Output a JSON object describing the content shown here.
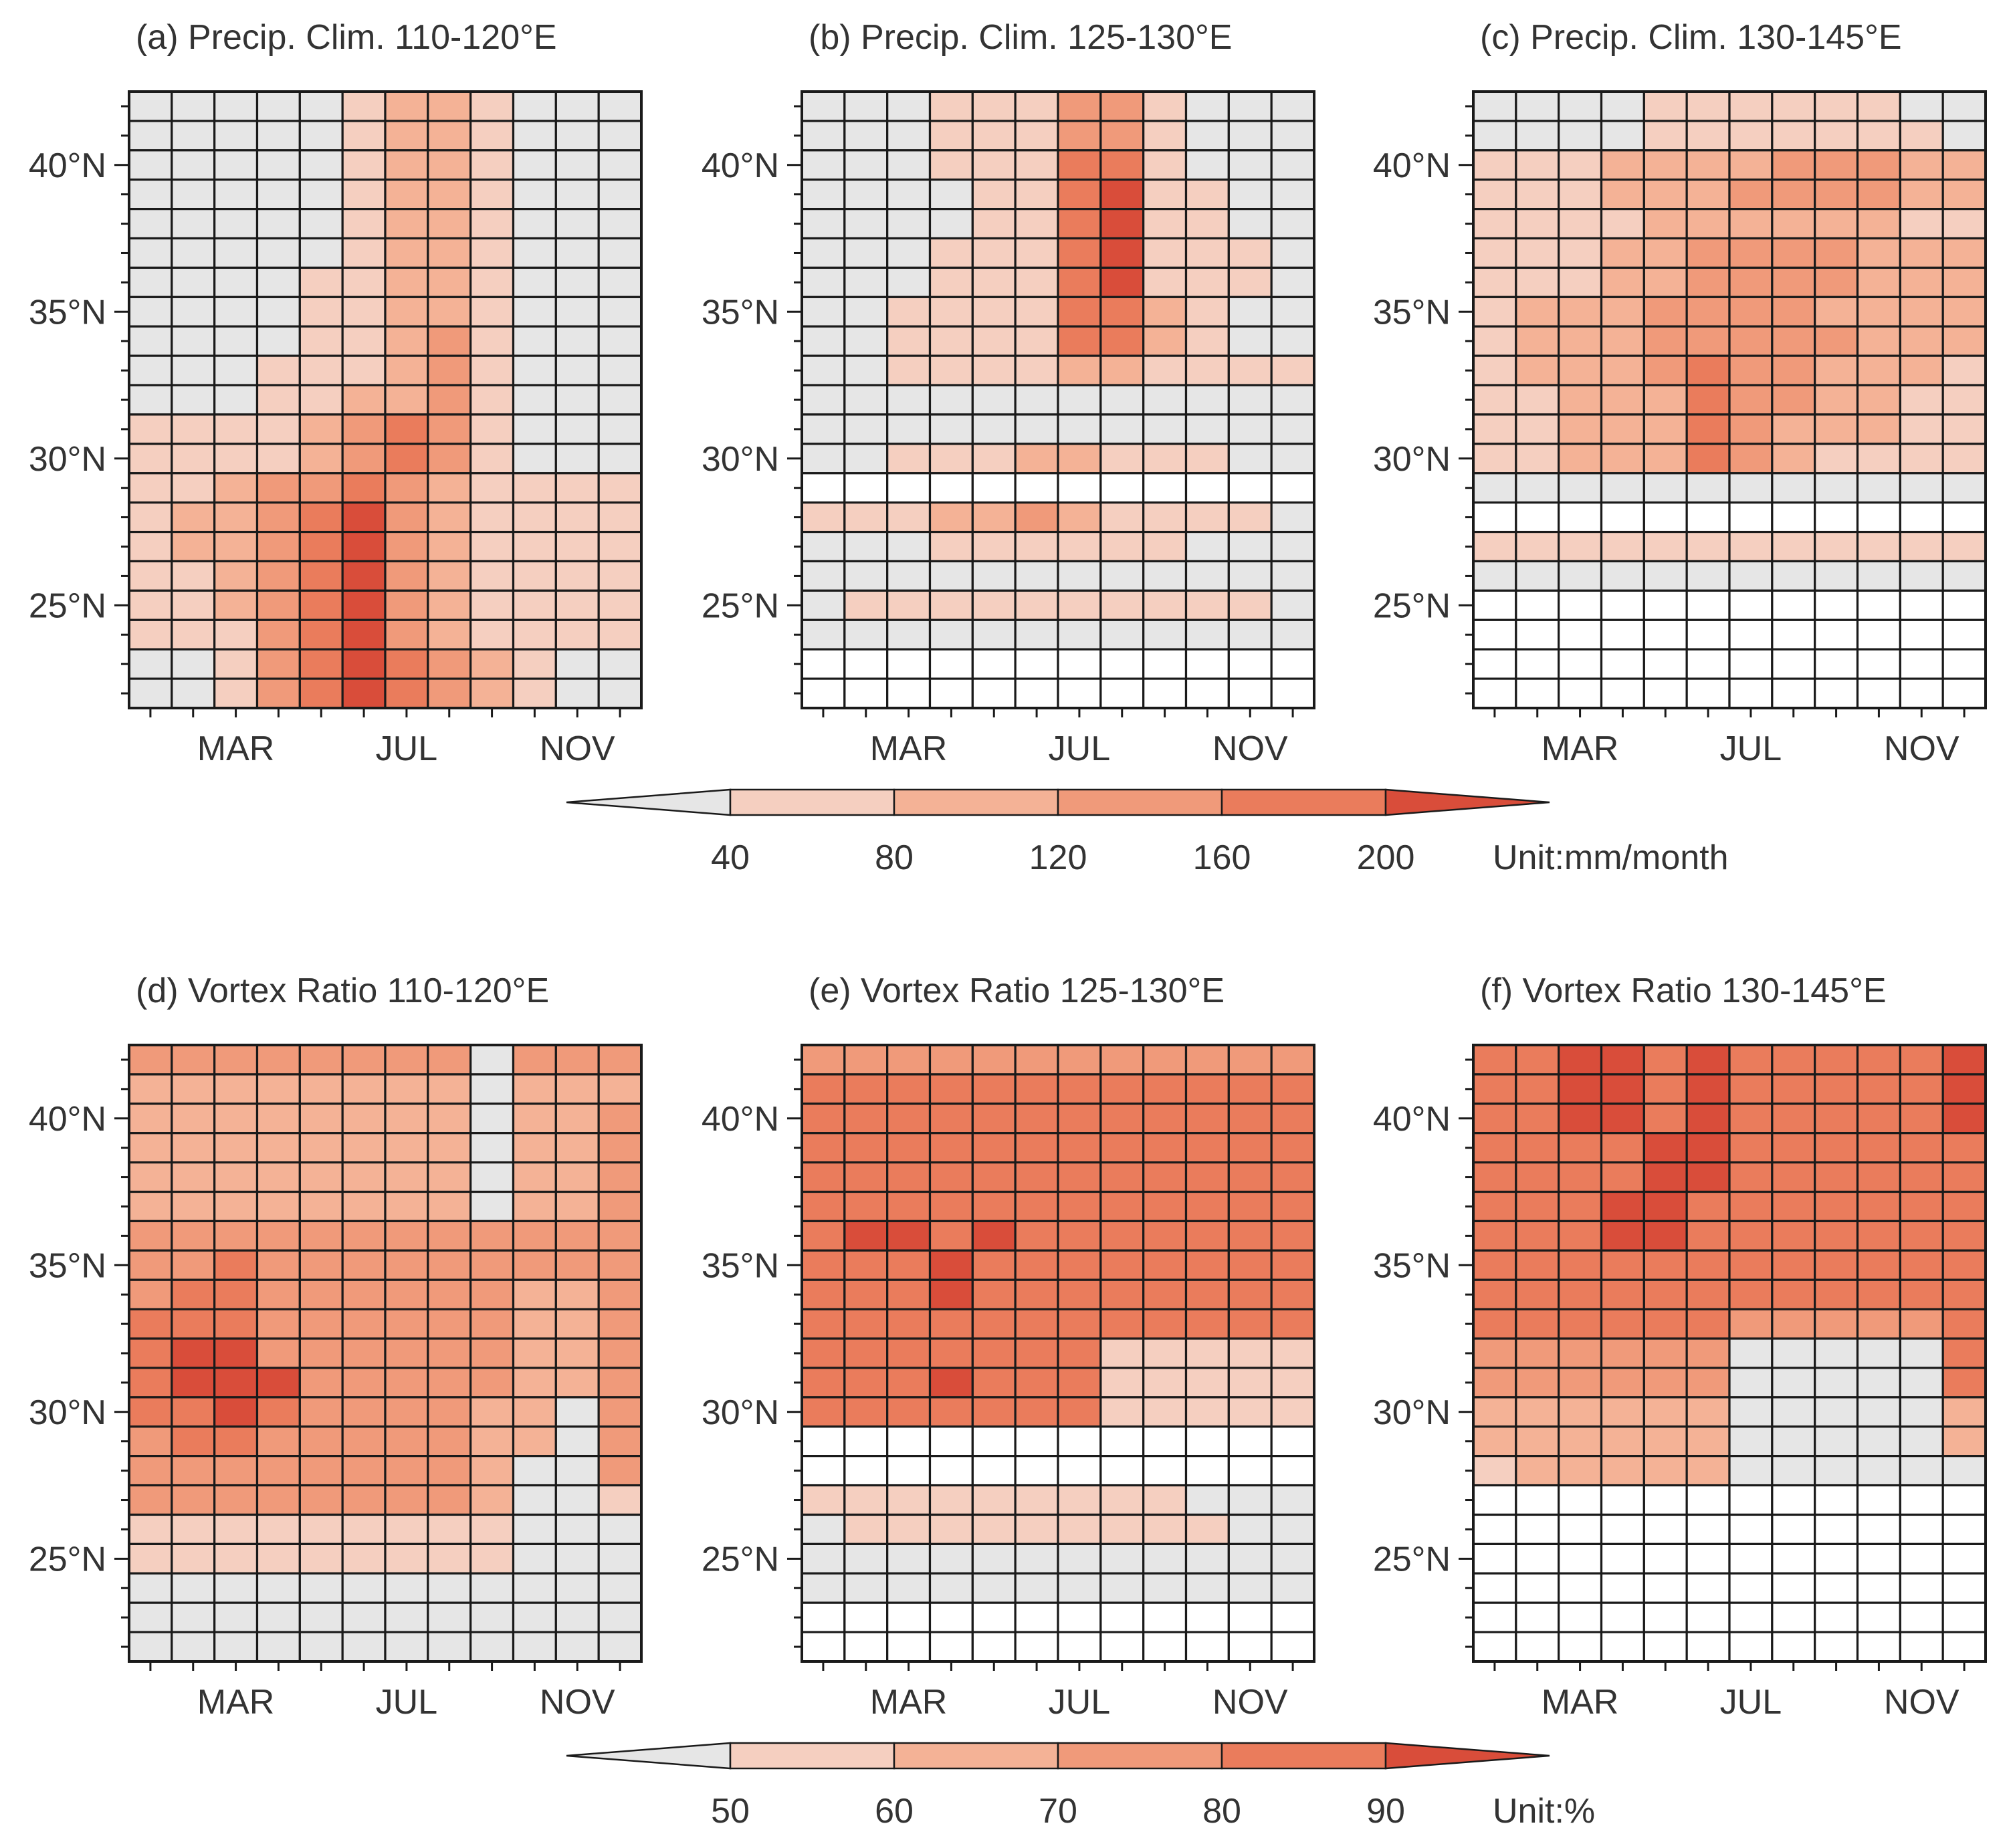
{
  "chart_data": {
    "type": "heatmap",
    "month_ticks": [
      "MAR",
      "JUL",
      "NOV"
    ],
    "lat_ticks": [
      "40°N",
      "35°N",
      "30°N",
      "25°N"
    ],
    "lat_rows": [
      42,
      41,
      40,
      39,
      38,
      37,
      36,
      35,
      34,
      33,
      32,
      31,
      30,
      29,
      28,
      27,
      26,
      25,
      24,
      23,
      22
    ],
    "grid": {
      "months": 12,
      "lat_range": [
        22,
        42
      ]
    },
    "colorbars": [
      {
        "id": "precip",
        "ticks": [
          "40",
          "80",
          "120",
          "160",
          "200"
        ],
        "bounds": [
          40,
          80,
          120,
          160,
          200
        ],
        "unit": "Unit:mm/month",
        "extend": "both",
        "colors": [
          "#e6e6e6",
          "#f5cfc0",
          "#f4b296",
          "#f09a7a",
          "#ea7c5c",
          "#d94d3a"
        ]
      },
      {
        "id": "vortex",
        "ticks": [
          "50",
          "60",
          "70",
          "80",
          "90"
        ],
        "bounds": [
          50,
          60,
          70,
          80,
          90
        ],
        "unit": "Unit:%",
        "extend": "both",
        "colors": [
          "#e6e6e6",
          "#f5cfc0",
          "#f4b296",
          "#f09a7a",
          "#ea7c5c",
          "#d94d3a"
        ]
      }
    ],
    "panels": [
      {
        "id": "a",
        "title": "(a) Precip. Clim. 110-120°E",
        "cbar": "precip",
        "rows": [
          "000001221000",
          "000001221000",
          "000001221000",
          "000001221000",
          "000001221000",
          "000001221000",
          "000011221000",
          "000011221000",
          "000011231000",
          "000111231000",
          "000112231000",
          "111123431000",
          "111123431000",
          "112334321111",
          "122345321111",
          "122345321111",
          "112345321111",
          "112345321111",
          "111345321111",
          "001345432100",
          "001345432100"
        ]
      },
      {
        "id": "b",
        "title": "(b) Precip. Clim. 125-130°E",
        "cbar": "precip",
        "rows": [
          "000111331000",
          "000111331000",
          "000111441000",
          "000011451100",
          "000011451100",
          "000111451110",
          "000111451110",
          "001111442100",
          "001111442100",
          "001111221111",
          "000000000000",
          "000000000000",
          "001112211100",
          "------------",
          "111223211110",
          "000111111000",
          "000000000000",
          "011111111110",
          "000000000000",
          "------------",
          "------------"
        ]
      },
      {
        "id": "c",
        "title": "(c) Precip. Clim. 130-145°E",
        "cbar": "precip",
        "rows": [
          "000011111100",
          "000011111110",
          "111222233322",
          "111222333322",
          "111122222211",
          "111223333222",
          "111223333222",
          "122233332222",
          "122233333222",
          "122234332221",
          "112224332211",
          "112224322211",
          "112224321111",
          "000000000000",
          "------------",
          "111111111111",
          "000000000000",
          "------------",
          "------------",
          "------------",
          "------------"
        ]
      },
      {
        "id": "d",
        "title": "(d) Vortex Ratio 110-120°E",
        "cbar": "vortex",
        "rows": [
          "333333330333",
          "222222220222",
          "222222220223",
          "222222220223",
          "222222220223",
          "222222220223",
          "333333333333",
          "334333333333",
          "344333333223",
          "444333333223",
          "455333333223",
          "455533333223",
          "445433332203",
          "344333332203",
          "333333332003",
          "333333332001",
          "111111111000",
          "111111111000",
          "000000000000",
          "000000000000",
          "000000000000"
        ]
      },
      {
        "id": "e",
        "title": "(e) Vortex Ratio 125-130°E",
        "cbar": "vortex",
        "rows": [
          "333333333333",
          "444444444444",
          "444444444444",
          "444444444444",
          "444444444444",
          "444444444444",
          "455454444444",
          "444544444444",
          "444544444444",
          "444444444444",
          "444444411111",
          "444544411111",
          "444444411111",
          "------------",
          "------------",
          "111111111000",
          "011111111100",
          "000000000000",
          "000000000000",
          "------------",
          "------------"
        ]
      },
      {
        "id": "f",
        "title": "(f) Vortex Ratio 130-145°E",
        "cbar": "vortex",
        "rows": [
          "445545444445",
          "445545444445",
          "445545444445",
          "444455444444",
          "444455444444",
          "444554444444",
          "444554444444",
          "444444444444",
          "444444444444",
          "444444333334",
          "333333000004",
          "333333000004",
          "222222000002",
          "222222000002",
          "122222000000",
          "------------",
          "------------",
          "------------",
          "------------",
          "------------",
          "------------"
        ]
      }
    ]
  }
}
